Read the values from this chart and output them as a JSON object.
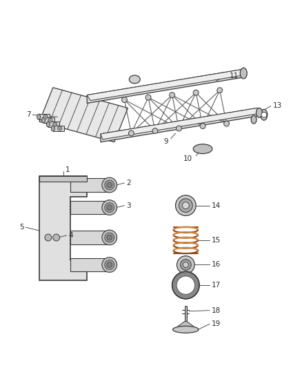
{
  "bg_color": "#ffffff",
  "line_color": "#3a3a3a",
  "figsize": [
    4.38,
    5.33
  ],
  "dpi": 100
}
